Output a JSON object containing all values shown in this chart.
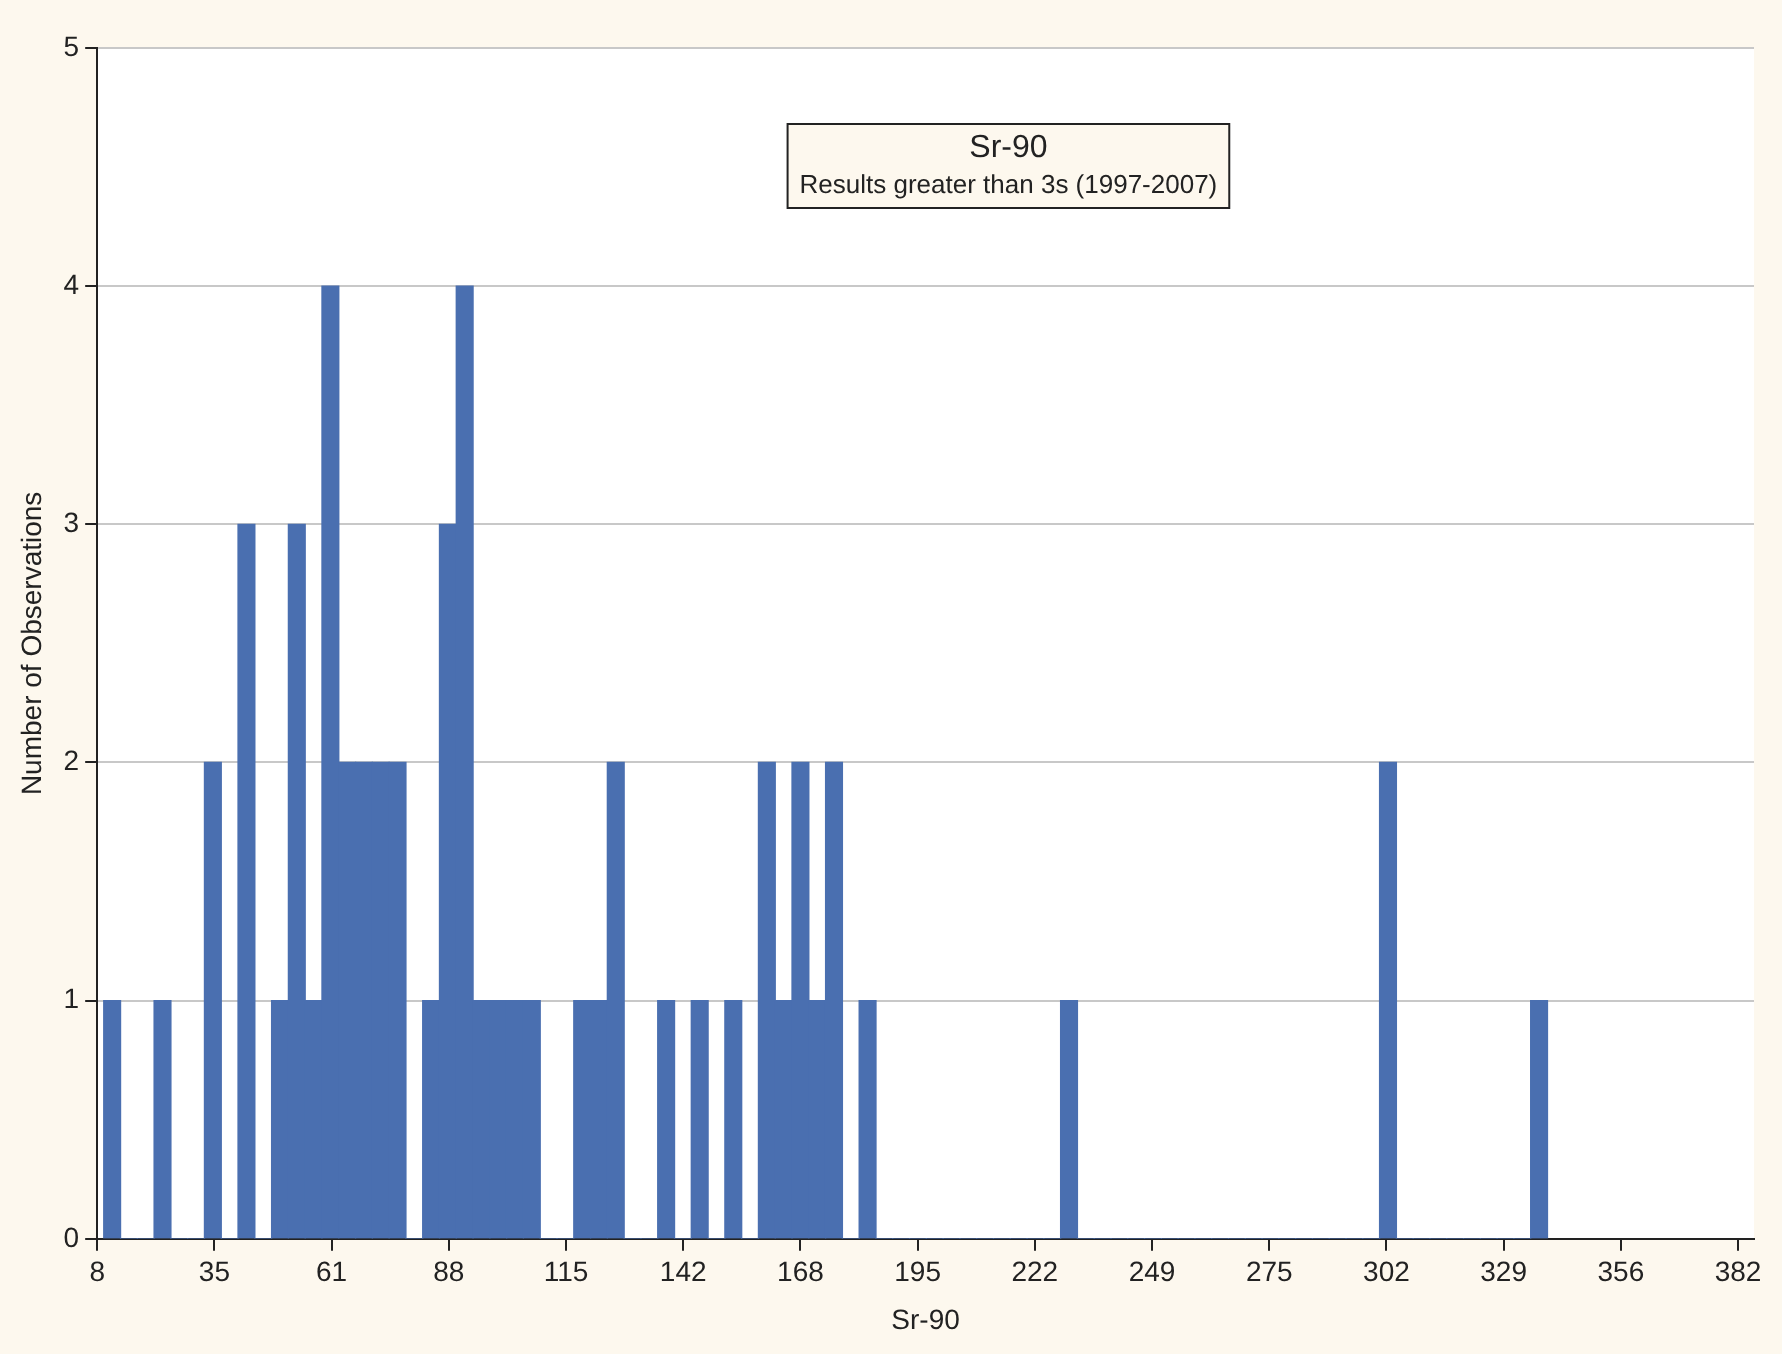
{
  "chart_data": {
    "type": "histogram",
    "title": "Sr-90",
    "subtitle": "Results greater than 3s (1997-2007)",
    "xlabel": "Sr-90",
    "ylabel": "Number of Observations",
    "bins": [
      9.5,
      13.33,
      17.16,
      20.99,
      24.82,
      28.65,
      32.48,
      36.31,
      40.14,
      43.97,
      47.8,
      51.63,
      55.46,
      59.29,
      63.12,
      66.95,
      70.78,
      74.61,
      78.44,
      82.27,
      86.1,
      89.93,
      93.76,
      97.59,
      101.42,
      105.25,
      109.08,
      112.91,
      116.74,
      120.57,
      124.4,
      128.23,
      132.06,
      135.89,
      139.72,
      143.55,
      147.38,
      151.21,
      155.04,
      158.87,
      162.7,
      166.53,
      170.36,
      174.19,
      178.02,
      181.85,
      185.68,
      189.51,
      193.34,
      197.17,
      201,
      204.83,
      208.66,
      212.49,
      216.32,
      220.15,
      223.98,
      227.81,
      231.64,
      235.47,
      239.3,
      243.13,
      246.96,
      250.79,
      254.62,
      258.45,
      262.28,
      266.11,
      269.94,
      273.77,
      277.6,
      281.43,
      285.26,
      289.09,
      292.92,
      296.75,
      300.58,
      304.41,
      308.24,
      312.07,
      315.9,
      319.73,
      323.56,
      327.39,
      331.22,
      335.05,
      338.88
    ],
    "values": [
      1,
      0,
      0,
      1,
      0,
      0,
      2,
      0,
      3,
      0,
      1,
      3,
      1,
      4,
      2,
      2,
      2,
      2,
      0,
      1,
      3,
      4,
      1,
      1,
      1,
      1,
      0,
      0,
      1,
      1,
      2,
      0,
      0,
      1,
      0,
      1,
      0,
      1,
      0,
      2,
      1,
      2,
      1,
      2,
      0,
      1,
      0,
      0,
      0,
      0,
      0,
      0,
      0,
      0,
      0,
      0,
      0,
      1,
      0,
      0,
      0,
      0,
      0,
      0,
      0,
      0,
      0,
      0,
      0,
      0,
      0,
      0,
      0,
      0,
      0,
      0,
      2,
      0,
      0,
      0,
      0,
      0,
      0,
      0,
      0,
      1
    ],
    "color": "#4a6fb0",
    "xlim": [
      8,
      386
    ],
    "xticks": [
      8,
      {
        "value": 34.74,
        "label": "35"
      },
      {
        "value": 61.48,
        "label": "61"
      },
      {
        "value": 88.22,
        "label": "88"
      },
      {
        "value": 114.96,
        "label": "115"
      },
      {
        "value": 141.7,
        "label": "142"
      },
      {
        "value": 168.44,
        "label": "168"
      },
      {
        "value": 195.18,
        "label": "195"
      },
      {
        "value": 221.92,
        "label": "222"
      },
      {
        "value": 248.66,
        "label": "249"
      },
      {
        "value": 275.4,
        "label": "275"
      },
      {
        "value": 302.14,
        "label": "302"
      },
      {
        "value": 328.88,
        "label": "329"
      },
      {
        "value": 355.62,
        "label": "356"
      },
      {
        "value": 382.36,
        "label": "382"
      }
    ],
    "ylim": [
      0,
      5
    ],
    "yticks": [
      0,
      1,
      2,
      3,
      4,
      5
    ],
    "grid": "y",
    "legend": false
  }
}
